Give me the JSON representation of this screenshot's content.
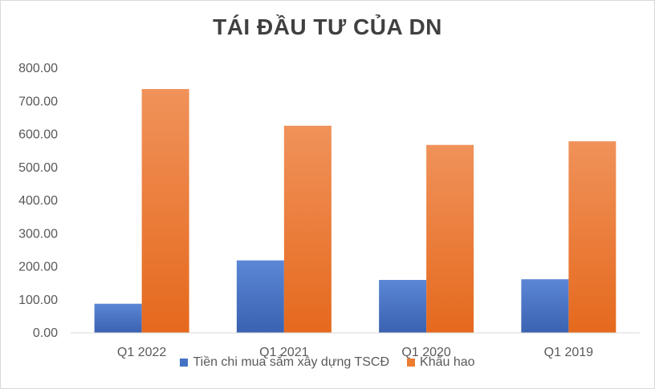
{
  "chart_data": {
    "type": "bar",
    "title": "TÁI ĐẦU TƯ CỦA DN",
    "xlabel": "",
    "ylabel": "",
    "categories": [
      "Q1 2022",
      "Q1 2021",
      "Q1 2020",
      "Q1 2019"
    ],
    "series": [
      {
        "name": "Tiền chi mua sắm xây dựng TSCĐ",
        "values": [
          88,
          219,
          160,
          162
        ],
        "color": "#4472c4"
      },
      {
        "name": "Khấu hao",
        "values": [
          737,
          626,
          568,
          579
        ],
        "color": "#ed7d31"
      }
    ],
    "ylim": [
      0,
      800
    ],
    "yticks": [
      "0.00",
      "100.00",
      "200.00",
      "300.00",
      "400.00",
      "500.00",
      "600.00",
      "700.00",
      "800.00"
    ],
    "ytick_values": [
      0,
      100,
      200,
      300,
      400,
      500,
      600,
      700,
      800
    ],
    "grid": false,
    "legend": "bottom"
  }
}
